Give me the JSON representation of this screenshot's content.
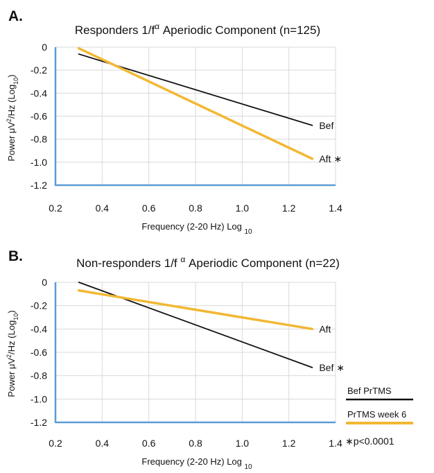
{
  "colors": {
    "bef": "#111111",
    "aft": "#f2b833",
    "axis": "#5b9bd5",
    "grid": "#d9d9d9"
  },
  "chart_data": [
    {
      "type": "line",
      "panel": "A.",
      "title": "Responders 1/fα Aperiodic Component (n=125)",
      "title_main": "Responders 1/f",
      "title_sup": "α",
      "title_tail": " Aperiodic Component (n=125)",
      "xlabel": "Frequency (2-20 Hz) Log 10",
      "xlabel_main": "Frequency (2-20 Hz) Log ",
      "xlabel_sub": "10",
      "ylabel": "Power μV2/Hz (Log10)",
      "xlim": [
        0.2,
        1.4
      ],
      "ylim": [
        -1.2,
        0
      ],
      "x_ticks": [
        "0.2",
        "0.4",
        "0.6",
        "0.8",
        "1.0",
        "1.2",
        "1.4"
      ],
      "y_ticks": [
        "0",
        "-0.2",
        "-0.4",
        "-0.6",
        "-0.8",
        "-1.0",
        "-1.2"
      ],
      "grid": true,
      "series": [
        {
          "name": "Bef",
          "end_label": "Bef",
          "color_key": "bef",
          "x": [
            0.3,
            1.3
          ],
          "y": [
            -0.06,
            -0.68
          ]
        },
        {
          "name": "Aft",
          "end_label": "Aft ∗",
          "color_key": "aft",
          "x": [
            0.3,
            1.3
          ],
          "y": [
            -0.01,
            -0.97
          ]
        }
      ]
    },
    {
      "type": "line",
      "panel": "B.",
      "title": "Non-responders 1/f α Aperiodic Component (n=22)",
      "title_main": "Non-responders 1/f ",
      "title_sup": "α",
      "title_tail": " Aperiodic Component (n=22)",
      "xlabel": "Frequency (2-20 Hz) Log 10",
      "xlabel_main": "Frequency (2-20 Hz) Log ",
      "xlabel_sub": "10",
      "ylabel": "Power μV2/Hz (Log10)",
      "xlim": [
        0.2,
        1.4
      ],
      "ylim": [
        -1.2,
        0
      ],
      "x_ticks": [
        "0.2",
        "0.4",
        "0.6",
        "0.8",
        "1.0",
        "1.2",
        "1.4"
      ],
      "y_ticks": [
        "0",
        "-0.2",
        "-0.4",
        "-0.6",
        "-0.8",
        "-1.0",
        "-1.2"
      ],
      "grid": true,
      "series": [
        {
          "name": "Bef",
          "end_label": "Bef ∗",
          "color_key": "bef",
          "x": [
            0.3,
            1.3
          ],
          "y": [
            0.0,
            -0.73
          ]
        },
        {
          "name": "Aft",
          "end_label": "Aft",
          "color_key": "aft",
          "x": [
            0.3,
            1.3
          ],
          "y": [
            -0.07,
            -0.4
          ]
        }
      ]
    }
  ],
  "legend": [
    {
      "label": "Bef PrTMS",
      "color_key": "bef"
    },
    {
      "label": "PrTMS week 6",
      "color_key": "aft"
    }
  ],
  "footnote": "∗p<0.0001"
}
